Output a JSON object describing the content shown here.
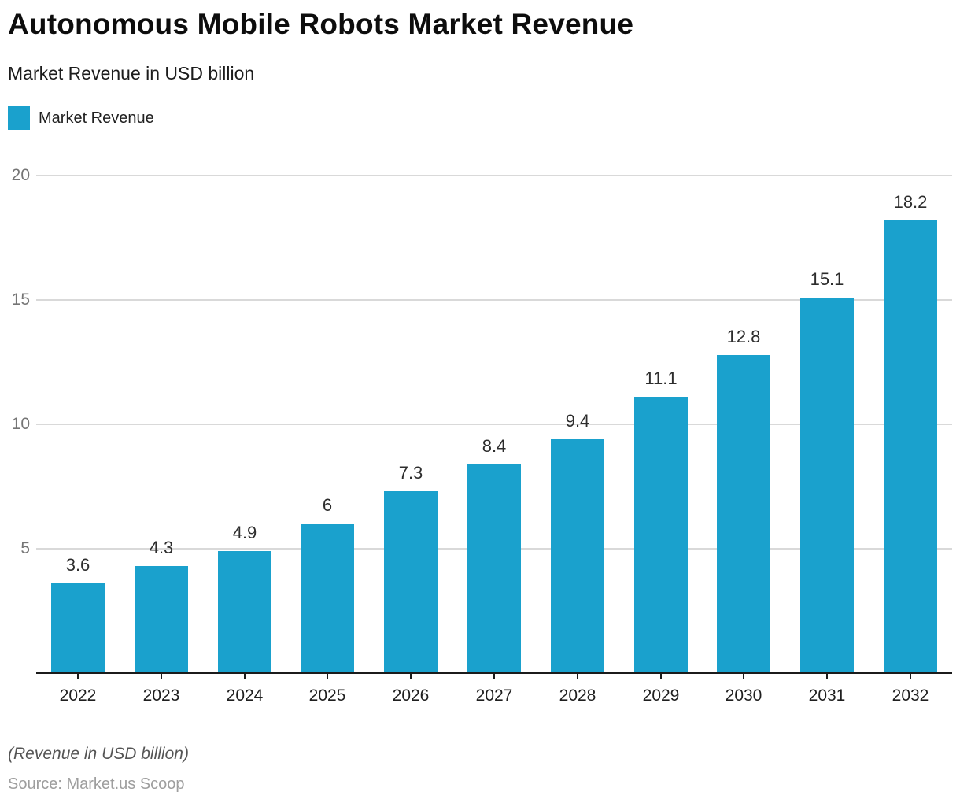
{
  "title": "Autonomous Mobile Robots Market Revenue",
  "subtitle": "Market Revenue in USD billion",
  "legend": {
    "label": "Market Revenue",
    "swatch_color": "#1aa1cd"
  },
  "footer": {
    "note": "(Revenue in USD billion)",
    "source": "Source: Market.us Scoop"
  },
  "colors": {
    "bar": "#1aa1cd",
    "grid": "#d9d9d9",
    "axis": "#1b1b1b",
    "tick": "#1b1b1b",
    "ytick_label": "#757575",
    "year_label": "#1f1f1f",
    "value_label": "#2d2d2d"
  },
  "chart_data": {
    "type": "bar",
    "title": "Autonomous Mobile Robots Market Revenue",
    "subtitle": "Market Revenue in USD billion",
    "categories": [
      "2022",
      "2023",
      "2024",
      "2025",
      "2026",
      "2027",
      "2028",
      "2029",
      "2030",
      "2031",
      "2032"
    ],
    "values": [
      3.6,
      4.3,
      4.9,
      6,
      7.3,
      8.4,
      9.4,
      11.1,
      12.8,
      15.1,
      18.2
    ],
    "value_labels": [
      "3.6",
      "4.3",
      "4.9",
      "6",
      "7.3",
      "8.4",
      "9.4",
      "11.1",
      "12.8",
      "15.1",
      "18.2"
    ],
    "series_name": "Market Revenue",
    "xlabel": "",
    "ylabel": "Market Revenue in USD billion",
    "ylim": [
      0,
      20
    ],
    "yticks": [
      5,
      10,
      15,
      20
    ],
    "grid": true,
    "legend_position": "top-left",
    "bar_color": "#1aa1cd"
  }
}
